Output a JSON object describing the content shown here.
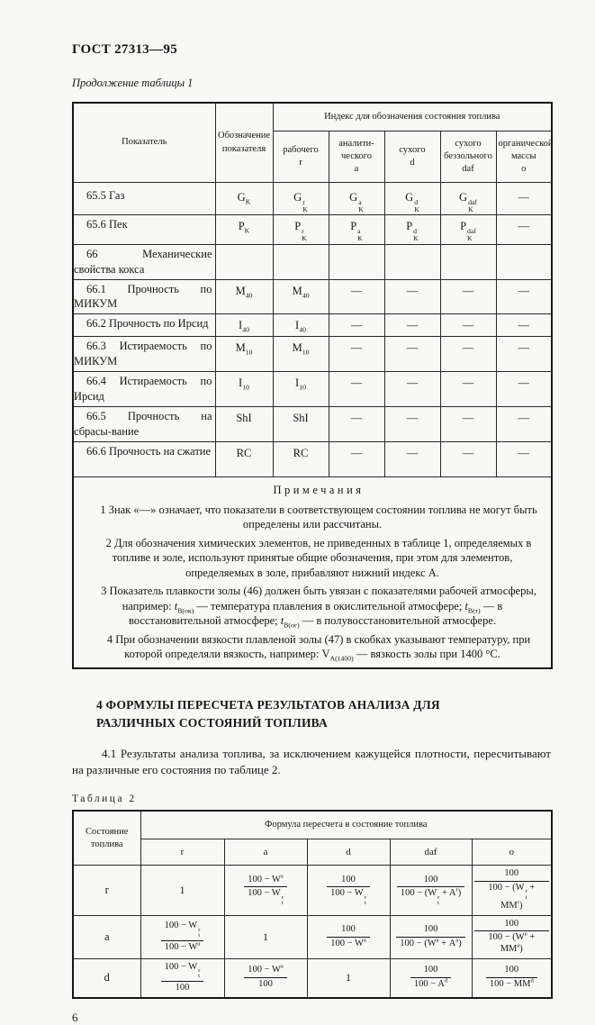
{
  "page": {
    "standard": "ГОСТ 27313—95",
    "table1_caption": "Продолжение таблицы 1",
    "table2_caption": "Таблица 2",
    "page_number": "6"
  },
  "table1": {
    "col_indicator": "Показатель",
    "col_designation": "Обозначение показателя",
    "group_header": "Индекс для обозначения состояния топлива",
    "subheaders": [
      {
        "id": "r",
        "lines": [
          "рабочего",
          "r"
        ]
      },
      {
        "id": "a",
        "lines": [
          "аналити-",
          "ческого",
          "а"
        ]
      },
      {
        "id": "d",
        "lines": [
          "сухого",
          "d"
        ]
      },
      {
        "id": "daf",
        "lines": [
          "сухого",
          "беззольного",
          "daf"
        ]
      },
      {
        "id": "o",
        "lines": [
          "органической",
          "массы",
          "о"
        ]
      }
    ],
    "rows": [
      {
        "label": "65.5 Газ",
        "cells": [
          "G~K~",
          "G[r/K]",
          "G[a/K]",
          "G[d/K]",
          "G[daf/K]",
          "—"
        ]
      },
      {
        "label": "65.6 Пек",
        "cells": [
          "P~K~",
          "P[r/K]",
          "P[a/K]",
          "P[d/K]",
          "P[daf/K]",
          "—"
        ]
      },
      {
        "label": "66 Механические свойства кокса",
        "cells": [
          "",
          "",
          "",
          "",
          "",
          ""
        ]
      },
      {
        "label": "66.1 Прочность по МИКУМ",
        "cells": [
          "M~40~",
          "M~40~",
          "—",
          "—",
          "—",
          "—"
        ]
      },
      {
        "label": "66.2 Прочность по Ирсид",
        "cells": [
          "I~40~",
          "I~40~",
          "—",
          "—",
          "—",
          "—"
        ]
      },
      {
        "label": "66.3 Истираемость по МИКУМ",
        "cells": [
          "M~10~",
          "M~10~",
          "—",
          "—",
          "—",
          "—"
        ]
      },
      {
        "label": "66.4 Истираемость по Ирсид",
        "cells": [
          "I~10~",
          "I~10~",
          "—",
          "—",
          "—",
          "—"
        ]
      },
      {
        "label": "66.5 Прочность на сбрасы-вание",
        "cells": [
          "ShI",
          "ShI",
          "—",
          "—",
          "—",
          "—"
        ]
      },
      {
        "label": "66.6 Прочность на сжатие",
        "cells": [
          "RC",
          "RC",
          "—",
          "—",
          "—",
          "—"
        ]
      }
    ]
  },
  "notes": {
    "title": "Примечания",
    "items": [
      "1 Знак «—» означает, что показатели в соответствующем состоянии топлива не могут быть определены или рассчитаны.",
      "2 Для обозначения химических элементов, не приведенных в таблице 1, определяемых в топливе и золе, используют принятые общие обозначения, при этом для элементов, определяемых в золе, прибавляют нижний индекс А.",
      "3 Показатель плавкости золы (46) должен быть увязан с показателями рабочей атмосферы, например: *t*~В(ок)~ — температура плавления в окислительной атмосфере; *t*~В(т)~ — в восстановительной атмосфере; *t*~В(ог)~ — в полувосстановительной атмосфере.",
      "4 При обозначении вязкости плавленой золы (47) в скобках указывают температуру, при которой определяли вязкость, например: V~А(1400)~ — вязкость золы при 1400 °С."
    ]
  },
  "section4": {
    "title_line1": "4 ФОРМУЛЫ ПЕРЕСЧЕТА РЕЗУЛЬТАТОВ АНАЛИЗА ДЛЯ",
    "title_line2": "РАЗЛИЧНЫХ СОСТОЯНИЙ ТОПЛИВА",
    "paragraph": "4.1 Результаты анализа топлива, за исключением кажущейся плотности, пересчитывают на различные его состояния по таблице 2."
  },
  "table2": {
    "col_state": "Состояние топлива",
    "group_header": "Формула пересчета в состояние топлива",
    "subheaders": [
      "r",
      "а",
      "d",
      "daf",
      "о"
    ],
    "rows": [
      {
        "state": "r",
        "cells": [
          "1",
          {
            "num": "100 − W^а^",
            "den": "100 − W[r/t]"
          },
          {
            "num": "100",
            "den": "100 − W[r/t]"
          },
          {
            "num": "100",
            "den": "100 − (W[r/t] + A^r^)"
          },
          {
            "num": "100",
            "den": "100 − (W[r/t] + MM^r^)"
          }
        ]
      },
      {
        "state": "а",
        "cells": [
          {
            "num": "100 − W[r/t]",
            "den": "100 − W^а^"
          },
          "1",
          {
            "num": "100",
            "den": "100 − W^а^"
          },
          {
            "num": "100",
            "den": "100 − (W^а^ + A^а^)"
          },
          {
            "num": "100",
            "den": "100 − (W^а^ + MM^а^)"
          }
        ]
      },
      {
        "state": "d",
        "cells": [
          {
            "num": "100 − W[r/t]",
            "den": "100"
          },
          {
            "num": "100 − W^а^",
            "den": "100"
          },
          "1",
          {
            "num": "100",
            "den": "100 − A^d^"
          },
          {
            "num": "100",
            "den": "100 − MM^d^"
          }
        ]
      }
    ]
  }
}
